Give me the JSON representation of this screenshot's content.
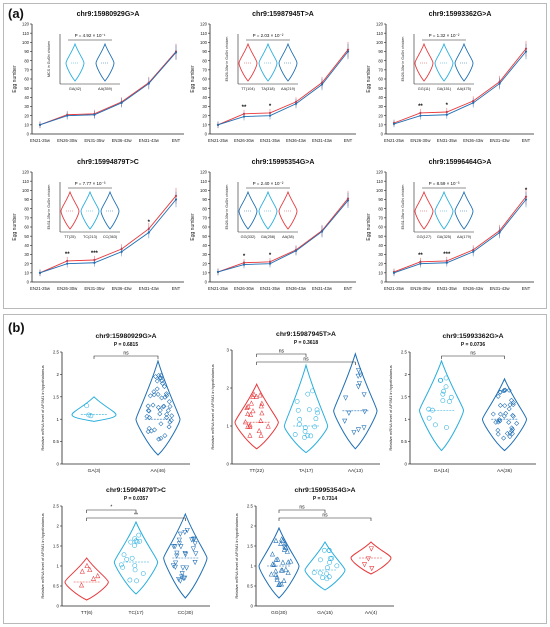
{
  "panel_labels": [
    "(a)",
    "(b)"
  ],
  "chart_data": [
    {
      "type": "line",
      "panel": "a",
      "title": "chr9:15980929G>A",
      "ylabel": "Egg number",
      "ylim": [
        0,
        120
      ],
      "yticks": [
        0,
        10,
        20,
        30,
        40,
        50,
        60,
        70,
        80,
        90,
        100,
        110,
        120
      ],
      "categories": [
        "EN21-25w",
        "EN26-30w",
        "EN31-35w",
        "EN36-43w",
        "EN31-43w",
        "ENT"
      ],
      "series": [
        {
          "values": [
            10,
            21,
            22,
            35,
            56,
            90
          ],
          "color": "#e8383b"
        },
        {
          "values": [
            10,
            20,
            21,
            34,
            55,
            89
          ],
          "color": "#1f6fb4"
        }
      ],
      "significance": [
        "",
        "",
        "",
        "",
        "",
        ""
      ],
      "inset": {
        "ylabel": "MCS in GuShi chicken",
        "pvalue": "P = 4.92 × 10⁻¹",
        "groups": [
          {
            "label": "GA(42)",
            "color": "#27aede"
          },
          {
            "label": "AA(359)",
            "color": "#1f6fb4"
          }
        ]
      }
    },
    {
      "type": "line",
      "panel": "a",
      "title": "chr9:15987945T>A",
      "ylabel": "Egg number",
      "ylim": [
        0,
        120
      ],
      "yticks": [
        0,
        10,
        20,
        30,
        40,
        50,
        60,
        70,
        80,
        90,
        100,
        110,
        120
      ],
      "categories": [
        "EN21-25w",
        "EN26-30w",
        "EN31-35w",
        "EN36-43w",
        "EN31-43w",
        "ENT"
      ],
      "series": [
        {
          "values": [
            10,
            22,
            23,
            35,
            56,
            92
          ],
          "color": "#e8383b"
        },
        {
          "values": [
            10,
            19,
            20,
            33,
            54,
            90
          ],
          "color": "#1f6fb4"
        }
      ],
      "significance": [
        "",
        "**",
        "*",
        "",
        "",
        ""
      ],
      "inset": {
        "ylabel": "EN26-30w in GuShi chicken",
        "pvalue": "P = 2.03 × 10⁻²",
        "groups": [
          {
            "label": "TT(104)",
            "color": "#e8383b"
          },
          {
            "label": "TA(318)",
            "color": "#27aede"
          },
          {
            "label": "AA(219)",
            "color": "#1f6fb4"
          }
        ]
      }
    },
    {
      "type": "line",
      "panel": "a",
      "title": "chr9:15993362G>A",
      "ylabel": "Egg number",
      "ylim": [
        0,
        120
      ],
      "yticks": [
        0,
        10,
        20,
        30,
        40,
        50,
        60,
        70,
        80,
        90,
        100,
        110,
        120
      ],
      "categories": [
        "EN21-25w",
        "EN26-30w",
        "EN31-35w",
        "EN36-43w",
        "EN31-43w",
        "ENT"
      ],
      "series": [
        {
          "values": [
            12,
            23,
            24,
            36,
            57,
            93
          ],
          "color": "#e8383b"
        },
        {
          "values": [
            11,
            20,
            21,
            34,
            55,
            90
          ],
          "color": "#1f6fb4"
        }
      ],
      "significance": [
        "",
        "**",
        "*",
        "",
        "",
        ""
      ],
      "inset": {
        "ylabel": "EN26-30w in GuShi chicken",
        "pvalue": "P = 1.32 × 10⁻²",
        "groups": [
          {
            "label": "GG(11)",
            "color": "#e8383b"
          },
          {
            "label": "GA(151)",
            "color": "#27aede"
          },
          {
            "label": "AA(475)",
            "color": "#1f6fb4"
          }
        ]
      }
    },
    {
      "type": "line",
      "panel": "a",
      "title": "chr9:15994879T>C",
      "ylabel": "Egg number",
      "ylim": [
        0,
        120
      ],
      "yticks": [
        0,
        10,
        20,
        30,
        40,
        50,
        60,
        70,
        80,
        90,
        100,
        110,
        120
      ],
      "categories": [
        "EN21-25w",
        "EN26-30w",
        "EN31-35w",
        "EN36-43w",
        "EN31-43w",
        "ENT"
      ],
      "series": [
        {
          "values": [
            10,
            23,
            24,
            36,
            58,
            94
          ],
          "color": "#e8383b"
        },
        {
          "values": [
            10,
            20,
            21,
            33,
            54,
            90
          ],
          "color": "#1f6fb4"
        }
      ],
      "significance": [
        "",
        "**",
        "***",
        "",
        "*",
        ""
      ],
      "inset": {
        "ylabel": "EN31-35w in GuShi chicken",
        "pvalue": "P = 7.77 × 10⁻³",
        "groups": [
          {
            "label": "TT(25)",
            "color": "#e8383b"
          },
          {
            "label": "TC(213)",
            "color": "#27aede"
          },
          {
            "label": "CC(363)",
            "color": "#1f6fb4"
          }
        ]
      }
    },
    {
      "type": "line",
      "panel": "a",
      "title": "chr9:15995354G>A",
      "ylabel": "Egg number",
      "ylim": [
        0,
        120
      ],
      "yticks": [
        0,
        10,
        20,
        30,
        40,
        50,
        60,
        70,
        80,
        90,
        100,
        110,
        120
      ],
      "categories": [
        "EN21-25w",
        "EN26-30w",
        "EN31-35w",
        "EN36-43w",
        "EN31-43w",
        "ENT"
      ],
      "series": [
        {
          "values": [
            11,
            21,
            22,
            35,
            56,
            91
          ],
          "color": "#e8383b"
        },
        {
          "values": [
            11,
            19,
            20,
            34,
            55,
            89
          ],
          "color": "#1f6fb4"
        }
      ],
      "significance": [
        "",
        "*",
        "*",
        "",
        "",
        ""
      ],
      "inset": {
        "ylabel": "EN26-30w in GuShi chicken",
        "pvalue": "P = 2.40 × 10⁻²",
        "groups": [
          {
            "label": "GG(332)",
            "color": "#1f6fb4"
          },
          {
            "label": "GA(258)",
            "color": "#27aede"
          },
          {
            "label": "AA(38)",
            "color": "#e8383b"
          }
        ]
      }
    },
    {
      "type": "line",
      "panel": "a",
      "title": "chr9:15996464G>A",
      "ylabel": "Egg number",
      "ylim": [
        0,
        120
      ],
      "yticks": [
        0,
        10,
        20,
        30,
        40,
        50,
        60,
        70,
        80,
        90,
        100,
        110,
        120
      ],
      "categories": [
        "EN21-25w",
        "EN26-30w",
        "EN31-35w",
        "EN36-43w",
        "EN31-43w",
        "ENT"
      ],
      "series": [
        {
          "values": [
            11,
            22,
            23,
            35,
            56,
            93
          ],
          "color": "#e8383b"
        },
        {
          "values": [
            10,
            20,
            21,
            33,
            54,
            90
          ],
          "color": "#1f6fb4"
        }
      ],
      "significance": [
        "",
        "**",
        "***",
        "",
        "",
        "*"
      ],
      "inset": {
        "ylabel": "EN31-35w in GuShi chicken",
        "pvalue": "P = 8.59 × 10⁻³",
        "groups": [
          {
            "label": "GG(127)",
            "color": "#e8383b"
          },
          {
            "label": "GA(325)",
            "color": "#27aede"
          },
          {
            "label": "AA(179)",
            "color": "#1f6fb4"
          }
        ]
      }
    },
    {
      "type": "violin",
      "panel": "b",
      "title": "chr9:15980929G>A",
      "pvalue": "P = 0.6815",
      "ylabel": "Relative mRNA level of AP3M1 in hypothalamus",
      "ylim": [
        0,
        2.5
      ],
      "yticks": [
        0,
        0.5,
        1,
        1.5,
        2,
        2.5
      ],
      "groups": [
        {
          "label": "GA(3)",
          "median": 1.1,
          "min": 0.95,
          "max": 1.5,
          "color": "#27aede",
          "marker": "circle"
        },
        {
          "label": "AA(46)",
          "median": 1.0,
          "min": 0.2,
          "max": 2.3,
          "color": "#1f6fb4",
          "marker": "diamond"
        }
      ],
      "comparisons": [
        {
          "from": 0,
          "to": 1,
          "text": "ns"
        }
      ]
    },
    {
      "type": "violin",
      "panel": "b",
      "title": "chr9:15987945T>A",
      "pvalue": "P = 0.3618",
      "ylabel": "Relative mRNA level of AP3M1 in hypothalamus",
      "ylim": [
        0,
        3
      ],
      "yticks": [
        0,
        1,
        2,
        3
      ],
      "groups": [
        {
          "label": "TT(22)",
          "median": 1.1,
          "min": 0.4,
          "max": 2.1,
          "color": "#e8383b",
          "marker": "triangle"
        },
        {
          "label": "TA(17)",
          "median": 1.0,
          "min": 0.3,
          "max": 2.6,
          "color": "#27aede",
          "marker": "circle"
        },
        {
          "label": "AA(13)",
          "median": 1.4,
          "min": 0.4,
          "max": 2.9,
          "color": "#1f6fb4",
          "marker": "triangle-down"
        }
      ],
      "comparisons": [
        {
          "from": 0,
          "to": 1,
          "text": "ns"
        },
        {
          "from": 0,
          "to": 2,
          "text": "ns"
        }
      ]
    },
    {
      "type": "violin",
      "panel": "b",
      "title": "chr9:15993362G>A",
      "pvalue": "P = 0.0736",
      "ylabel": "Relative mRNA level of AP3M1 in hypothalamus",
      "ylim": [
        0,
        2.5
      ],
      "yticks": [
        0,
        0.5,
        1,
        1.5,
        2,
        2.5
      ],
      "groups": [
        {
          "label": "GA(14)",
          "median": 1.2,
          "min": 0.3,
          "max": 2.3,
          "color": "#27aede",
          "marker": "circle"
        },
        {
          "label": "AA(36)",
          "median": 1.0,
          "min": 0.3,
          "max": 1.9,
          "color": "#1f6fb4",
          "marker": "diamond"
        }
      ],
      "comparisons": [
        {
          "from": 0,
          "to": 1,
          "text": "ns"
        }
      ]
    },
    {
      "type": "violin",
      "panel": "b",
      "title": "chr9:15994879T>C",
      "pvalue": "P = 0.0357",
      "ylabel": "Relative mRNA level of AP3M1 in hypothalamus",
      "ylim": [
        0,
        2.5
      ],
      "yticks": [
        0,
        0.5,
        1,
        1.5,
        2,
        2.5
      ],
      "groups": [
        {
          "label": "TT(6)",
          "median": 0.6,
          "min": 0.15,
          "max": 1.2,
          "color": "#e8383b",
          "marker": "triangle"
        },
        {
          "label": "TC(17)",
          "median": 1.1,
          "min": 0.3,
          "max": 2.1,
          "color": "#27aede",
          "marker": "circle"
        },
        {
          "label": "CC(30)",
          "median": 1.2,
          "min": 0.2,
          "max": 2.3,
          "color": "#1f6fb4",
          "marker": "triangle-down"
        }
      ],
      "comparisons": [
        {
          "from": 0,
          "to": 1,
          "text": "*"
        },
        {
          "from": 0,
          "to": 2,
          "text": "**"
        }
      ]
    },
    {
      "type": "violin",
      "panel": "b",
      "title": "chr9:15995354G>A",
      "pvalue": "P = 0.7314",
      "ylabel": "Relative mRNA level of AP3M1 in hypothalamus",
      "ylim": [
        0,
        2.5
      ],
      "yticks": [
        0,
        0.5,
        1,
        1.5,
        2,
        2.5
      ],
      "groups": [
        {
          "label": "GG(30)",
          "median": 1.0,
          "min": 0.2,
          "max": 1.95,
          "color": "#1f6fb4",
          "marker": "triangle"
        },
        {
          "label": "GA(15)",
          "median": 0.9,
          "min": 0.4,
          "max": 1.6,
          "color": "#27aede",
          "marker": "circle"
        },
        {
          "label": "AA(4)",
          "median": 1.2,
          "min": 0.8,
          "max": 1.6,
          "color": "#e8383b",
          "marker": "triangle-down"
        }
      ],
      "comparisons": [
        {
          "from": 0,
          "to": 1,
          "text": "ns"
        },
        {
          "from": 0,
          "to": 2,
          "text": "ns"
        }
      ]
    }
  ]
}
